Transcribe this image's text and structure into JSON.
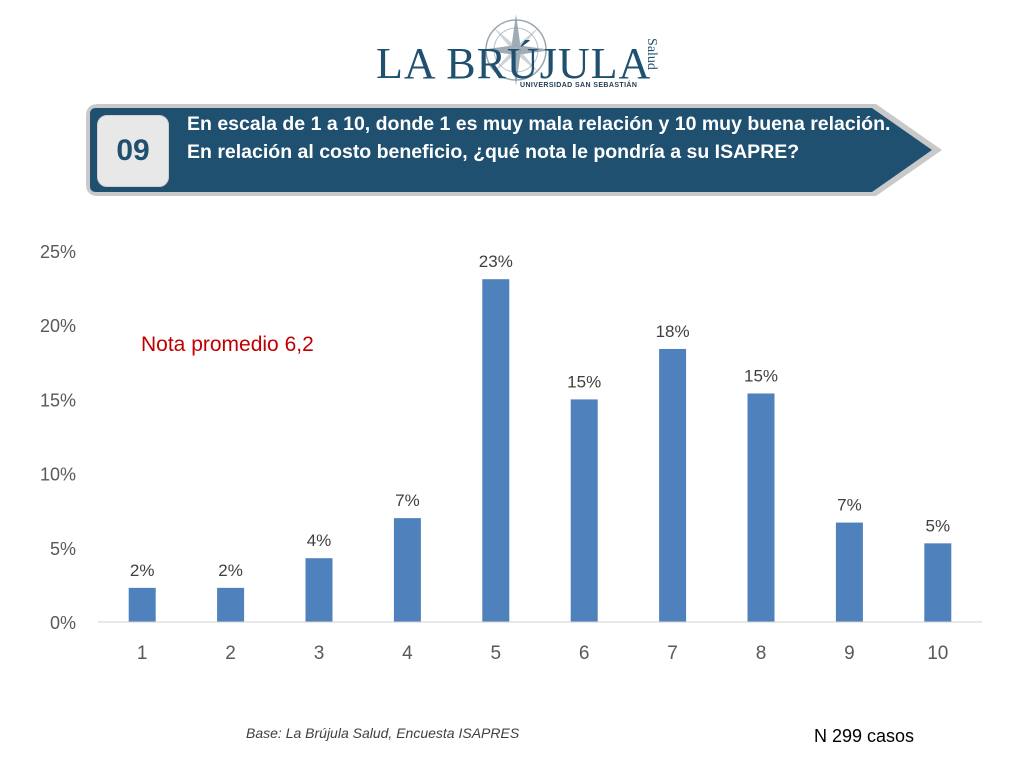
{
  "logo": {
    "text": "LA BRÚJULA",
    "tagline": "Salud",
    "subtitle": "UNIVERSIDAD SAN SEBASTIÁN"
  },
  "header": {
    "number": "09",
    "question": "En escala de 1 a 10, donde 1 es muy mala relación y 10 muy buena relación. En relación al costo beneficio, ¿qué nota le pondría a su ISAPRE?",
    "banner_color": "#1f5070"
  },
  "annotation": "Nota promedio 6,2",
  "footer": {
    "base": "Base: La Brújula Salud, Encuesta ISAPRES",
    "cases": "N 299 casos"
  },
  "chart_data": {
    "type": "bar",
    "categories": [
      "1",
      "2",
      "3",
      "4",
      "5",
      "6",
      "7",
      "8",
      "9",
      "10"
    ],
    "values": [
      2.3,
      2.3,
      4.3,
      7.0,
      23.1,
      15.0,
      18.4,
      15.4,
      6.7,
      5.3
    ],
    "data_labels": [
      "2%",
      "2%",
      "4%",
      "7%",
      "23%",
      "15%",
      "18%",
      "15%",
      "7%",
      "5%"
    ],
    "ylim": [
      0,
      25
    ],
    "yticks": [
      0,
      5,
      10,
      15,
      20,
      25
    ],
    "ytick_labels": [
      "0%",
      "5%",
      "10%",
      "15%",
      "20%",
      "25%"
    ],
    "bar_color": "#4f81bd",
    "grid": false
  }
}
